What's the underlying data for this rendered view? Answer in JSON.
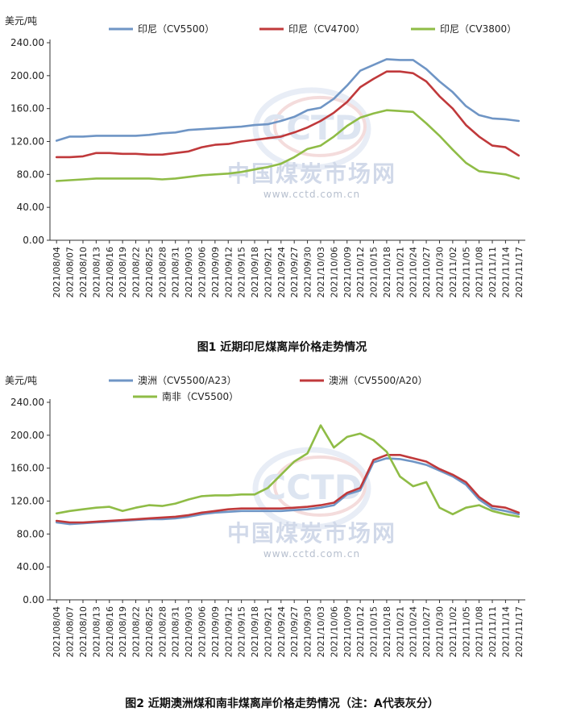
{
  "captions": [
    "图1  近期印尼煤离岸价格走势情况",
    "图2  近期澳洲煤和南非煤离岸价格走势情况（注：A代表灰分）"
  ],
  "watermark": {
    "logo": "CCTD",
    "name": "中国煤炭市场网",
    "url": "www.cctd.com.cn"
  },
  "colors": {
    "blue": "#6f95c5",
    "red": "#c0393b",
    "green": "#8fbc46",
    "axis": "#333333",
    "watermark": "#c9d3e6"
  },
  "chart_data": [
    {
      "type": "line",
      "ylabel": "美元/吨",
      "ylim": [
        0,
        240
      ],
      "yticks": [
        "0.00",
        "40.00",
        "80.00",
        "120.00",
        "160.00",
        "200.00",
        "240.00"
      ],
      "x_labels": [
        "2021/08/04",
        "2021/08/07",
        "2021/08/10",
        "2021/08/13",
        "2021/08/16",
        "2021/08/19",
        "2021/08/22",
        "2021/08/25",
        "2021/08/28",
        "2021/08/31",
        "2021/09/03",
        "2021/09/06",
        "2021/09/09",
        "2021/09/12",
        "2021/09/15",
        "2021/09/18",
        "2021/09/21",
        "2021/09/24",
        "2021/09/27",
        "2021/09/30",
        "2021/10/03",
        "2021/10/06",
        "2021/10/09",
        "2021/10/12",
        "2021/10/15",
        "2021/10/18",
        "2021/10/21",
        "2021/10/24",
        "2021/10/27",
        "2021/10/30",
        "2021/11/02",
        "2021/11/05",
        "2021/11/08",
        "2021/11/11",
        "2021/11/14",
        "2021/11/17"
      ],
      "legend_position": "top",
      "series": [
        {
          "name": "印尼（CV5500）",
          "color": "#6f95c5",
          "values": [
            121,
            126,
            126,
            127,
            127,
            127,
            127,
            128,
            130,
            131,
            134,
            135,
            136,
            137,
            138,
            140,
            141,
            145,
            150,
            158,
            161,
            172,
            188,
            206,
            213,
            220,
            219,
            219,
            208,
            193,
            180,
            163,
            152,
            148,
            147,
            145
          ]
        },
        {
          "name": "印尼（CV4700）",
          "color": "#c0393b",
          "values": [
            101,
            101,
            102,
            106,
            106,
            105,
            105,
            104,
            104,
            106,
            108,
            113,
            116,
            117,
            120,
            122,
            124,
            126,
            131,
            137,
            145,
            155,
            168,
            186,
            196,
            205,
            205,
            203,
            193,
            175,
            160,
            140,
            126,
            115,
            113,
            103
          ]
        },
        {
          "name": "印尼（CV3800）",
          "color": "#8fbc46",
          "values": [
            72,
            73,
            74,
            75,
            75,
            75,
            75,
            75,
            74,
            75,
            77,
            79,
            80,
            81,
            83,
            86,
            89,
            93,
            101,
            111,
            115,
            126,
            139,
            149,
            154,
            158,
            157,
            156,
            142,
            127,
            110,
            94,
            84,
            82,
            80,
            75
          ]
        }
      ]
    },
    {
      "type": "line",
      "ylabel": "美元/吨",
      "ylim": [
        0,
        240
      ],
      "yticks": [
        "0.00",
        "40.00",
        "80.00",
        "120.00",
        "160.00",
        "200.00",
        "240.00"
      ],
      "x_labels": [
        "2021/08/04",
        "2021/08/07",
        "2021/08/10",
        "2021/08/13",
        "2021/08/16",
        "2021/08/19",
        "2021/08/22",
        "2021/08/25",
        "2021/08/28",
        "2021/08/31",
        "2021/09/03",
        "2021/09/06",
        "2021/09/09",
        "2021/09/12",
        "2021/09/15",
        "2021/09/18",
        "2021/09/21",
        "2021/09/24",
        "2021/09/27",
        "2021/09/30",
        "2021/10/03",
        "2021/10/06",
        "2021/10/09",
        "2021/10/12",
        "2021/10/15",
        "2021/10/18",
        "2021/10/21",
        "2021/10/24",
        "2021/10/27",
        "2021/10/30",
        "2021/11/02",
        "2021/11/05",
        "2021/11/08",
        "2021/11/11",
        "2021/11/14",
        "2021/11/17"
      ],
      "legend_position": "top",
      "series": [
        {
          "name": "澳洲（CV5500/A23）",
          "color": "#6f95c5",
          "values": [
            94,
            92,
            93,
            94,
            95,
            96,
            97,
            98,
            98,
            99,
            101,
            104,
            106,
            107,
            108,
            108,
            108,
            108,
            109,
            110,
            112,
            115,
            128,
            133,
            167,
            172,
            171,
            168,
            164,
            157,
            150,
            140,
            122,
            111,
            108,
            104
          ]
        },
        {
          "name": "澳洲（CV5500/A20）",
          "color": "#c0393b",
          "values": [
            96,
            94,
            94,
            95,
            96,
            97,
            98,
            99,
            100,
            101,
            103,
            106,
            108,
            110,
            111,
            111,
            111,
            111,
            112,
            113,
            115,
            118,
            130,
            136,
            170,
            176,
            176,
            172,
            168,
            159,
            152,
            143,
            125,
            114,
            112,
            106
          ]
        },
        {
          "name": "南非（CV5500）",
          "color": "#8fbc46",
          "values": [
            105,
            108,
            110,
            112,
            113,
            108,
            112,
            115,
            114,
            117,
            122,
            126,
            127,
            127,
            128,
            128,
            136,
            152,
            168,
            178,
            212,
            185,
            198,
            202,
            194,
            180,
            150,
            138,
            143,
            112,
            104,
            112,
            115,
            108,
            104,
            101
          ]
        }
      ]
    }
  ]
}
